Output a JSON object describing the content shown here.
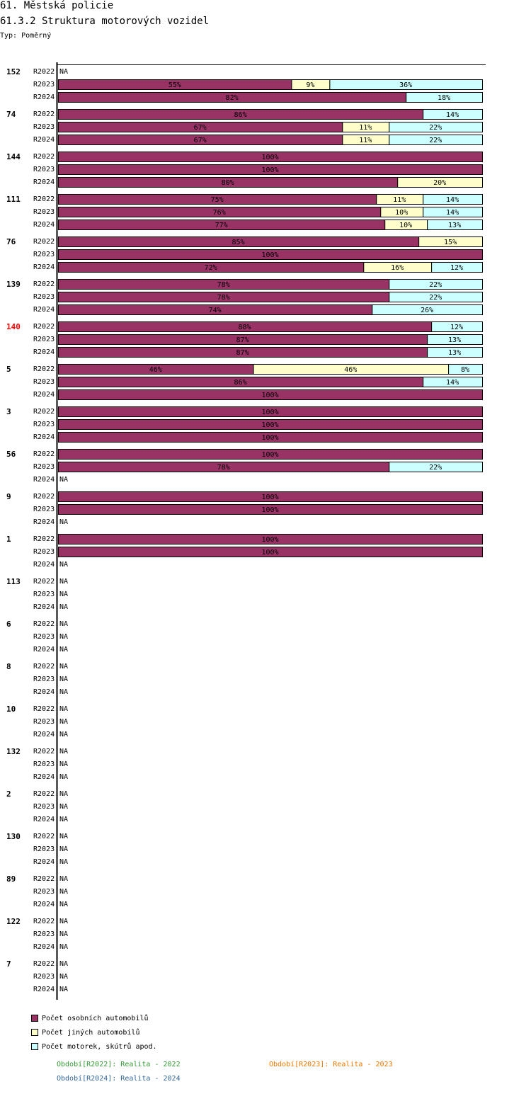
{
  "header": {
    "title": "61. Městská policie",
    "subtitle": "61.3.2 Struktura motorových vozidel",
    "type_label": "Typ: Poměrný"
  },
  "chart_data": {
    "type": "bar",
    "orientation": "horizontal",
    "stacked": true,
    "unit": "%",
    "xlim": [
      0,
      100
    ],
    "periods": [
      "R2022",
      "R2023",
      "R2024"
    ],
    "series": [
      {
        "key": "osobni",
        "name": "Počet osobních automobilů",
        "color": "#993366"
      },
      {
        "key": "jine",
        "name": "Počet jiných automobilů",
        "color": "#ffffcc"
      },
      {
        "key": "motorky",
        "name": "Počet motorek, skútrů apod.",
        "color": "#ccffff"
      }
    ],
    "groups": [
      {
        "id": "152",
        "highlight": false,
        "rows": [
          null,
          [
            55,
            9,
            36
          ],
          [
            82,
            0,
            18
          ]
        ]
      },
      {
        "id": "74",
        "highlight": false,
        "rows": [
          [
            86,
            0,
            14
          ],
          [
            67,
            11,
            22
          ],
          [
            67,
            11,
            22
          ]
        ]
      },
      {
        "id": "144",
        "highlight": false,
        "rows": [
          [
            100,
            0,
            0
          ],
          [
            100,
            0,
            0
          ],
          [
            80,
            20,
            0
          ]
        ]
      },
      {
        "id": "111",
        "highlight": false,
        "rows": [
          [
            75,
            11,
            14
          ],
          [
            76,
            10,
            14
          ],
          [
            77,
            10,
            13
          ]
        ]
      },
      {
        "id": "76",
        "highlight": false,
        "rows": [
          [
            85,
            15,
            0
          ],
          [
            100,
            0,
            0
          ],
          [
            72,
            16,
            12
          ]
        ]
      },
      {
        "id": "139",
        "highlight": false,
        "rows": [
          [
            78,
            0,
            22
          ],
          [
            78,
            0,
            22
          ],
          [
            74,
            0,
            26
          ]
        ]
      },
      {
        "id": "140",
        "highlight": true,
        "rows": [
          [
            88,
            0,
            12
          ],
          [
            87,
            0,
            13
          ],
          [
            87,
            0,
            13
          ]
        ]
      },
      {
        "id": "5",
        "highlight": false,
        "rows": [
          [
            46,
            46,
            8
          ],
          [
            86,
            0,
            14
          ],
          [
            100,
            0,
            0
          ]
        ]
      },
      {
        "id": "3",
        "highlight": false,
        "rows": [
          [
            100,
            0,
            0
          ],
          [
            100,
            0,
            0
          ],
          [
            100,
            0,
            0
          ]
        ]
      },
      {
        "id": "56",
        "highlight": false,
        "rows": [
          [
            100,
            0,
            0
          ],
          [
            78,
            0,
            22
          ],
          null
        ]
      },
      {
        "id": "9",
        "highlight": false,
        "rows": [
          [
            100,
            0,
            0
          ],
          [
            100,
            0,
            0
          ],
          null
        ]
      },
      {
        "id": "1",
        "highlight": false,
        "rows": [
          [
            100,
            0,
            0
          ],
          [
            100,
            0,
            0
          ],
          null
        ]
      },
      {
        "id": "113",
        "highlight": false,
        "rows": [
          null,
          null,
          null
        ]
      },
      {
        "id": "6",
        "highlight": false,
        "rows": [
          null,
          null,
          null
        ]
      },
      {
        "id": "8",
        "highlight": false,
        "rows": [
          null,
          null,
          null
        ]
      },
      {
        "id": "10",
        "highlight": false,
        "rows": [
          null,
          null,
          null
        ]
      },
      {
        "id": "132",
        "highlight": false,
        "rows": [
          null,
          null,
          null
        ]
      },
      {
        "id": "2",
        "highlight": false,
        "rows": [
          null,
          null,
          null
        ]
      },
      {
        "id": "130",
        "highlight": false,
        "rows": [
          null,
          null,
          null
        ]
      },
      {
        "id": "89",
        "highlight": false,
        "rows": [
          null,
          null,
          null
        ]
      },
      {
        "id": "122",
        "highlight": false,
        "rows": [
          null,
          null,
          null
        ]
      },
      {
        "id": "7",
        "highlight": false,
        "rows": [
          null,
          null,
          null
        ]
      }
    ],
    "na_label": "NA",
    "highlight_color": "#ff0000"
  },
  "periods_legend": [
    {
      "text": "Období[R2022]: Realita - 2022",
      "color": "#339933"
    },
    {
      "text": "Období[R2023]: Realita - 2023",
      "color": "#ee7700"
    },
    {
      "text": "Období[R2024]: Realita - 2024",
      "color": "#336699"
    }
  ]
}
